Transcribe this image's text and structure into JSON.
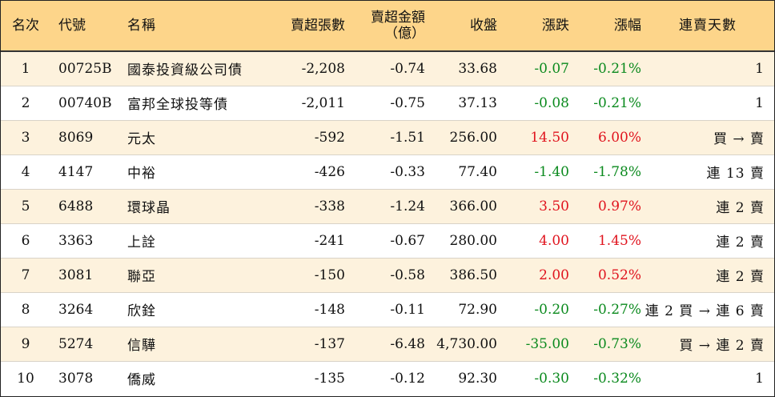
{
  "colors": {
    "header_bg": "#fdd58a",
    "row_odd": "#fdf2dd",
    "row_even": "#ffffff",
    "up": "#e0141e",
    "down": "#0b8a1e"
  },
  "headers": {
    "rank": "名次",
    "code": "代號",
    "name": "名稱",
    "sheets": "賣超張數",
    "amount_line1": "賣超金額",
    "amount_line2": "（億）",
    "close": "收盤",
    "change": "漲跌",
    "pct": "漲幅",
    "days": "連賣天數"
  },
  "rows": [
    {
      "rank": "1",
      "code": "00725B",
      "name": "國泰投資級公司債",
      "sheets": "-2,208",
      "amount": "-0.74",
      "close": "33.68",
      "change": "-0.07",
      "pct": "-0.21%",
      "days": "1",
      "dir": "down"
    },
    {
      "rank": "2",
      "code": "00740B",
      "name": "富邦全球投等債",
      "sheets": "-2,011",
      "amount": "-0.75",
      "close": "37.13",
      "change": "-0.08",
      "pct": "-0.21%",
      "days": "1",
      "dir": "down"
    },
    {
      "rank": "3",
      "code": "8069",
      "name": "元太",
      "sheets": "-592",
      "amount": "-1.51",
      "close": "256.00",
      "change": "14.50",
      "pct": "6.00%",
      "days": "買 → 賣",
      "dir": "up"
    },
    {
      "rank": "4",
      "code": "4147",
      "name": "中裕",
      "sheets": "-426",
      "amount": "-0.33",
      "close": "77.40",
      "change": "-1.40",
      "pct": "-1.78%",
      "days": "連 13 賣",
      "dir": "down"
    },
    {
      "rank": "5",
      "code": "6488",
      "name": "環球晶",
      "sheets": "-338",
      "amount": "-1.24",
      "close": "366.00",
      "change": "3.50",
      "pct": "0.97%",
      "days": "連 2 賣",
      "dir": "up"
    },
    {
      "rank": "6",
      "code": "3363",
      "name": "上詮",
      "sheets": "-241",
      "amount": "-0.67",
      "close": "280.00",
      "change": "4.00",
      "pct": "1.45%",
      "days": "連 2 賣",
      "dir": "up"
    },
    {
      "rank": "7",
      "code": "3081",
      "name": "聯亞",
      "sheets": "-150",
      "amount": "-0.58",
      "close": "386.50",
      "change": "2.00",
      "pct": "0.52%",
      "days": "連 2 賣",
      "dir": "up"
    },
    {
      "rank": "8",
      "code": "3264",
      "name": "欣銓",
      "sheets": "-148",
      "amount": "-0.11",
      "close": "72.90",
      "change": "-0.20",
      "pct": "-0.27%",
      "days": "連 2 買 → 連 6 賣",
      "dir": "down"
    },
    {
      "rank": "9",
      "code": "5274",
      "name": "信驊",
      "sheets": "-137",
      "amount": "-6.48",
      "close": "4,730.00",
      "change": "-35.00",
      "pct": "-0.73%",
      "days": "買 → 連 2 賣",
      "dir": "down"
    },
    {
      "rank": "10",
      "code": "3078",
      "name": "僑威",
      "sheets": "-135",
      "amount": "-0.12",
      "close": "92.30",
      "change": "-0.30",
      "pct": "-0.32%",
      "days": "1",
      "dir": "down"
    }
  ]
}
